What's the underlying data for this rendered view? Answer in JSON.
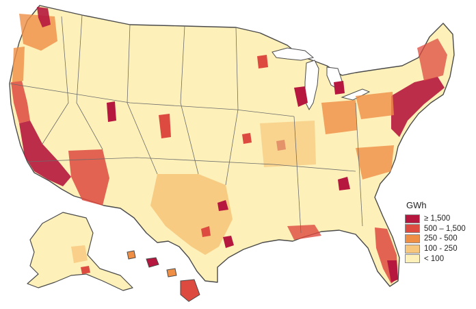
{
  "legend": {
    "title": "GWh",
    "items": [
      {
        "label": "≥ 1,500",
        "color": "#b5173e"
      },
      {
        "label": "500 – 1,500",
        "color": "#dd4a3f"
      },
      {
        "label": "250 - 500",
        "color": "#ef8f45"
      },
      {
        "label": "100 - 250",
        "color": "#f7c77d"
      },
      {
        "label": "< 100",
        "color": "#fdf0b8"
      }
    ]
  },
  "colors": {
    "border": "#4a4a4a",
    "county_border": "#c9b98a",
    "background": "#ffffff"
  }
}
